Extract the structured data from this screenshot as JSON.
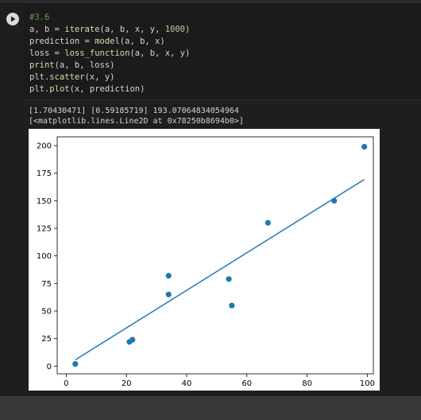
{
  "code": {
    "lines": [
      [
        {
          "t": "#3.6",
          "c": "comment"
        }
      ],
      [
        {
          "t": "a, b = ",
          "c": ""
        },
        {
          "t": "iterate",
          "c": "func"
        },
        {
          "t": "(a, b, x, y, ",
          "c": ""
        },
        {
          "t": "1000",
          "c": "num"
        },
        {
          "t": ")",
          "c": ""
        }
      ],
      [
        {
          "t": "prediction = ",
          "c": ""
        },
        {
          "t": "model",
          "c": "func"
        },
        {
          "t": "(a, b, x)",
          "c": ""
        }
      ],
      [
        {
          "t": "loss = ",
          "c": ""
        },
        {
          "t": "loss_function",
          "c": "func"
        },
        {
          "t": "(a, b, x, y)",
          "c": ""
        }
      ],
      [
        {
          "t": "print",
          "c": "func"
        },
        {
          "t": "(a, b, loss)",
          "c": ""
        }
      ],
      [
        {
          "t": "plt.",
          "c": ""
        },
        {
          "t": "scatter",
          "c": "func"
        },
        {
          "t": "(x, y)",
          "c": ""
        }
      ],
      [
        {
          "t": "plt.",
          "c": ""
        },
        {
          "t": "plot",
          "c": "func"
        },
        {
          "t": "(x, prediction)",
          "c": ""
        }
      ]
    ]
  },
  "run_button_icon": "play-icon",
  "output": {
    "print_line": "[1.70430471] [0.59185719] 193.07064834054964",
    "repr_line": "[<matplotlib.lines.Line2D at 0x78250b8694b0>]"
  },
  "colors": {
    "point": "#1f77b4",
    "line": "#1f77b4",
    "cell_bg": "#1e1e1e",
    "code_bg": "#1b1b1b"
  },
  "chart_data": {
    "type": "scatter",
    "title": "",
    "xlabel": "",
    "ylabel": "",
    "xlim": [
      -3,
      102
    ],
    "ylim": [
      -7,
      208
    ],
    "xticks": [
      0,
      20,
      40,
      60,
      80,
      100
    ],
    "yticks": [
      0,
      25,
      50,
      75,
      100,
      125,
      150,
      175,
      200
    ],
    "grid": false,
    "points": [
      {
        "x": 3,
        "y": 2
      },
      {
        "x": 21,
        "y": 22
      },
      {
        "x": 22,
        "y": 24
      },
      {
        "x": 34,
        "y": 82
      },
      {
        "x": 34,
        "y": 65
      },
      {
        "x": 54,
        "y": 79
      },
      {
        "x": 55,
        "y": 55
      },
      {
        "x": 67,
        "y": 130
      },
      {
        "x": 89,
        "y": 150
      },
      {
        "x": 99,
        "y": 199
      }
    ],
    "fit_line": {
      "x": [
        3,
        99
      ],
      "y": [
        5.7,
        169.3
      ]
    }
  }
}
